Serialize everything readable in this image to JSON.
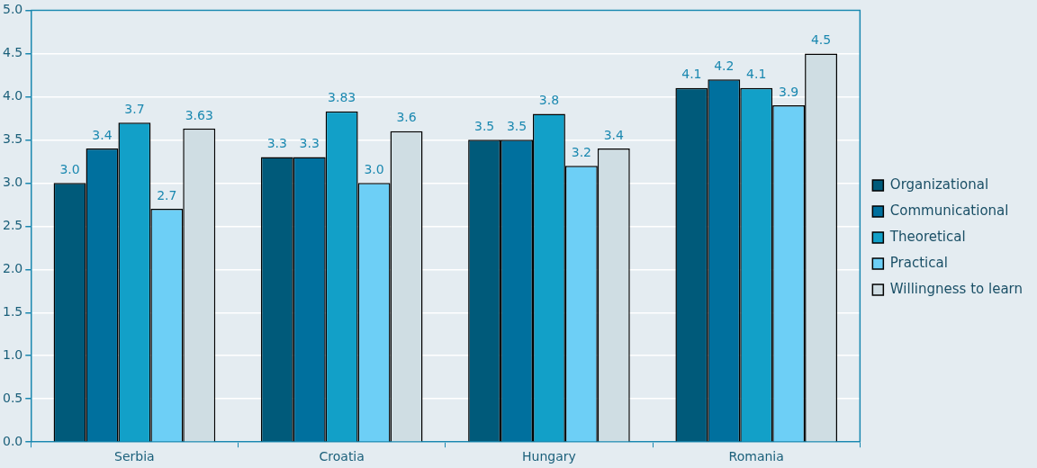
{
  "chart_data": {
    "type": "bar",
    "categories": [
      "Serbia",
      "Croatia",
      "Hungary",
      "Romania"
    ],
    "series": [
      {
        "name": "Organizational",
        "color": "#005a7a",
        "values": [
          3.0,
          3.3,
          3.5,
          4.1
        ],
        "value_labels": [
          "3.0",
          "3.3",
          "3.5",
          "4.1"
        ]
      },
      {
        "name": "Communicational",
        "color": "#00709e",
        "values": [
          3.4,
          3.3,
          3.5,
          4.2
        ],
        "value_labels": [
          "3.4",
          "3.3",
          "3.5",
          "4.2"
        ]
      },
      {
        "name": "Theoretical",
        "color": "#12a0c8",
        "values": [
          3.7,
          3.83,
          3.8,
          4.1
        ],
        "value_labels": [
          "3.7",
          "3.83",
          "3.8",
          "4.1"
        ]
      },
      {
        "name": "Practical",
        "color": "#6dcff6",
        "values": [
          2.7,
          3.0,
          3.2,
          3.9
        ],
        "value_labels": [
          "2.7",
          "3.0",
          "3.2",
          "3.9"
        ]
      },
      {
        "name": "Willingness to learn",
        "color": "#cfdde3",
        "values": [
          3.63,
          3.6,
          3.4,
          4.5
        ],
        "value_labels": [
          "3.63",
          "3.6",
          "3.4",
          "4.5"
        ]
      }
    ],
    "ylim": [
      0,
      5
    ],
    "yticks": [
      {
        "value": 0,
        "label": "0.0"
      },
      {
        "value": 0.5,
        "label": "0.5"
      },
      {
        "value": 1,
        "label": "1.0"
      },
      {
        "value": 1.5,
        "label": "1.5"
      },
      {
        "value": 2,
        "label": "2.0"
      },
      {
        "value": 2.5,
        "label": "2.5"
      },
      {
        "value": 3,
        "label": "3.0"
      },
      {
        "value": 3.5,
        "label": "3.5"
      },
      {
        "value": 4,
        "label": "4.0"
      },
      {
        "value": 4.5,
        "label": "4.5"
      },
      {
        "value": 5,
        "label": "5.0"
      }
    ],
    "grid": "y",
    "legend": "right"
  }
}
